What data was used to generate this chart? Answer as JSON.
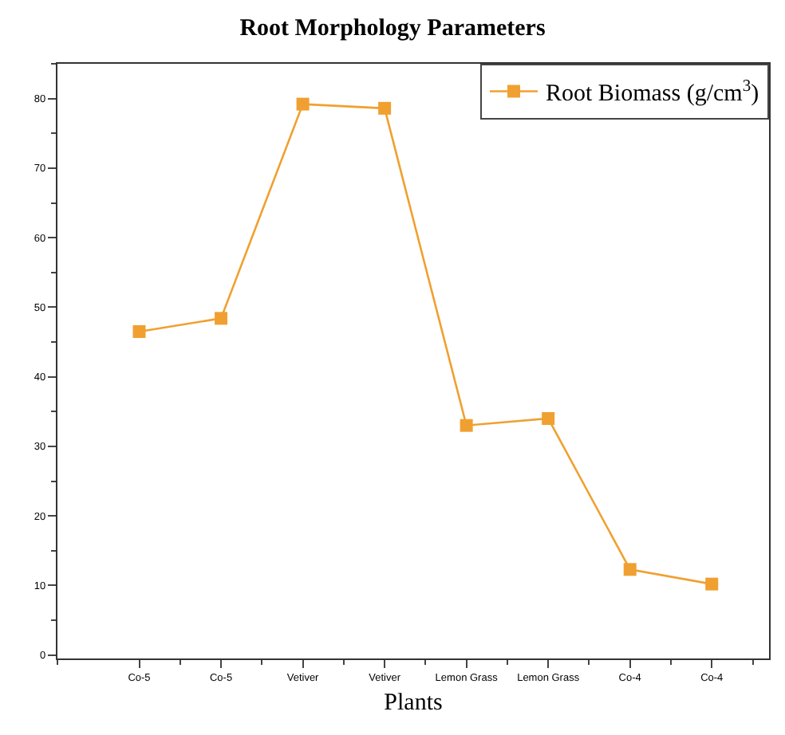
{
  "chart_data": {
    "type": "line",
    "title": "Root Morphology Parameters",
    "xlabel": "Plants",
    "categories": [
      "Co-5",
      "Co-5",
      "Vetiver",
      "Vetiver",
      "Lemon Grass",
      "Lemon Grass",
      "Co-4",
      "Co-4"
    ],
    "series": [
      {
        "name": "Root Biomass (g/cm$^{3}$)",
        "color": "#f0a030",
        "values": [
          46.5,
          48.4,
          79.2,
          78.6,
          33.0,
          34.0,
          12.3,
          10.2
        ]
      }
    ],
    "ylim": [
      -0.5,
      85
    ],
    "yticks": [
      0,
      10,
      20,
      30,
      40,
      50,
      60,
      70,
      80
    ],
    "grid": false,
    "legend": "top right",
    "marker": "square",
    "line_style": "solid"
  }
}
